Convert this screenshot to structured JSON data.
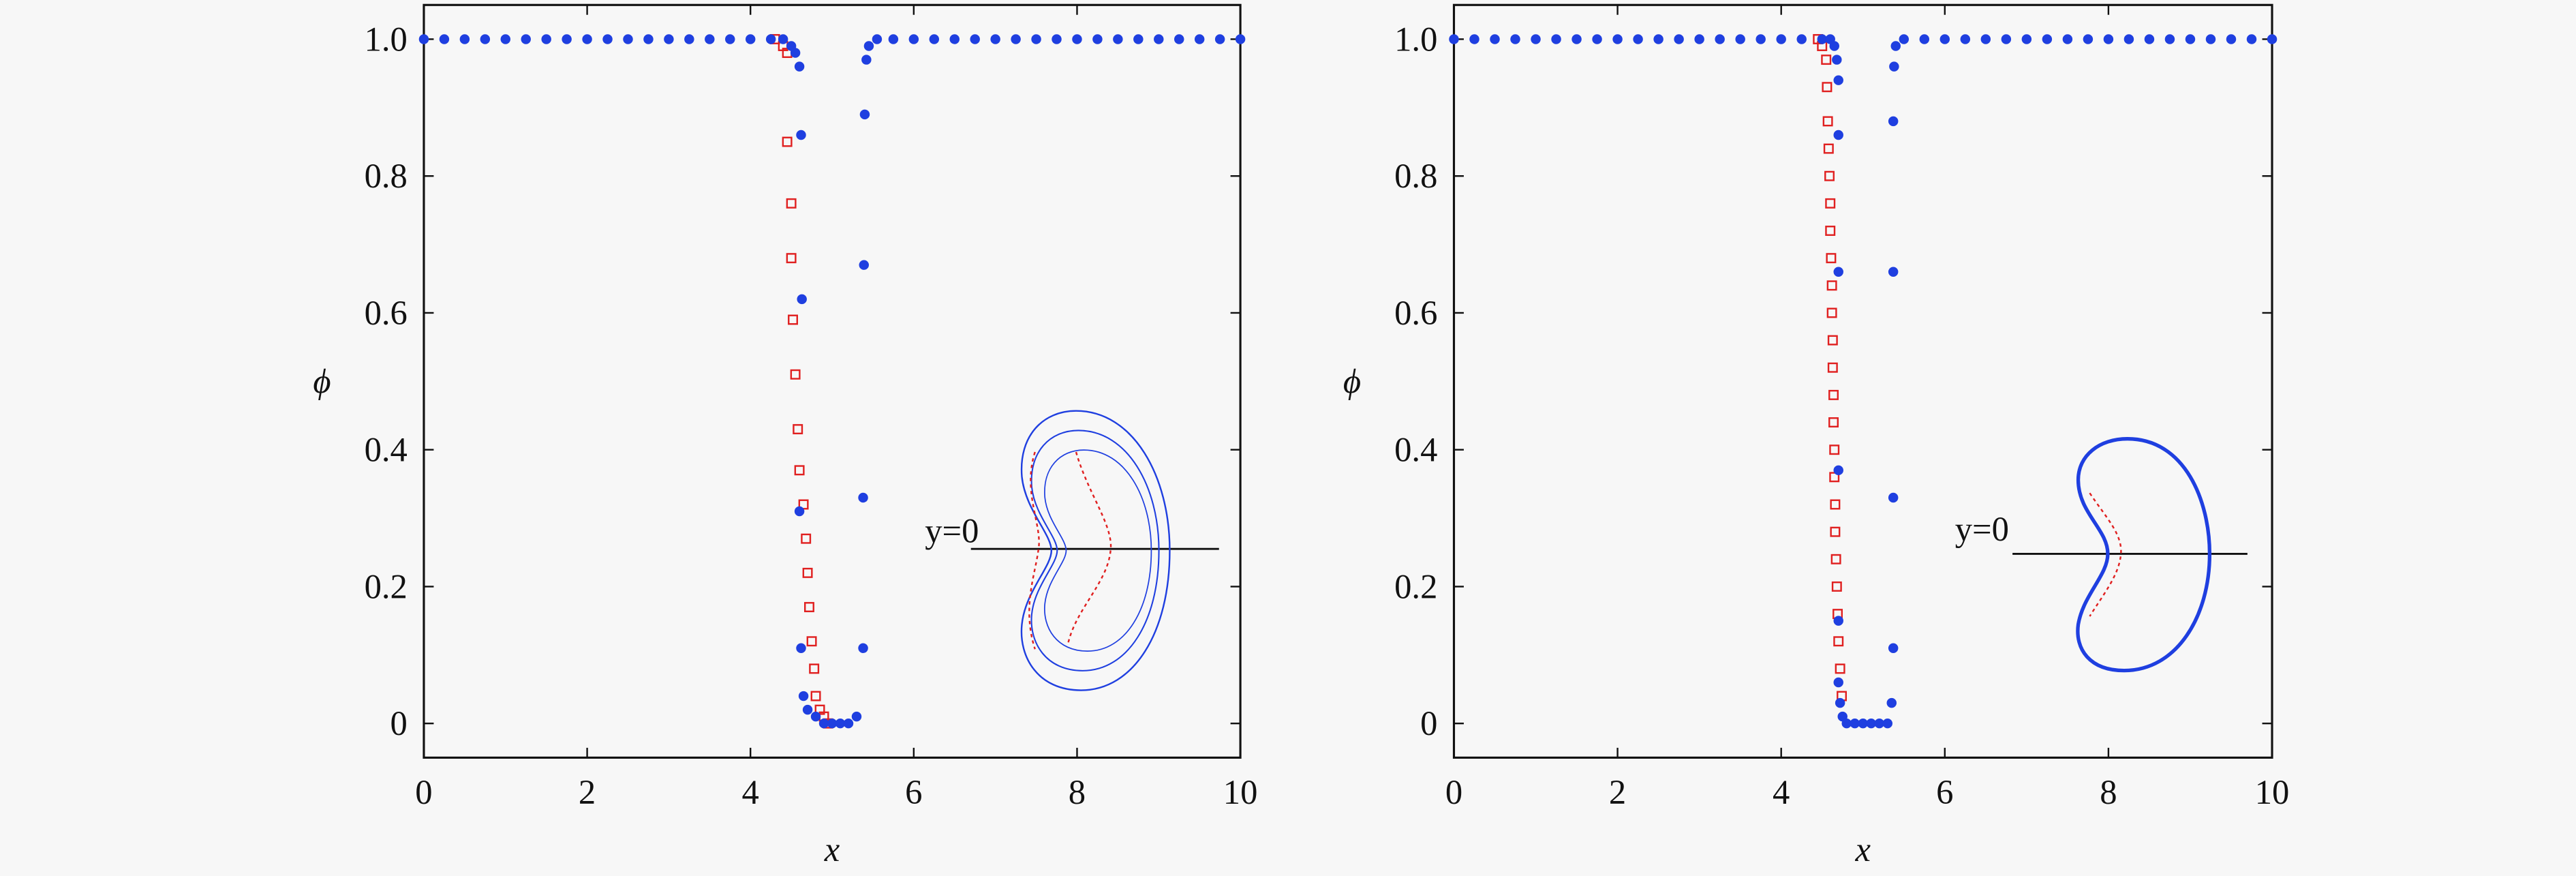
{
  "chart_data": [
    {
      "type": "scatter",
      "xlabel": "x",
      "ylabel": "ϕ",
      "annotation": "y=0",
      "xlim": [
        0,
        10
      ],
      "ylim": [
        -0.05,
        1.05
      ],
      "xticks": [
        0,
        2,
        4,
        6,
        8,
        10
      ],
      "yticks": [
        {
          "value": 0,
          "label": "0"
        },
        0.2,
        0.4,
        0.6,
        0.8,
        {
          "value": 1,
          "label": "1.0"
        }
      ],
      "series": [
        {
          "color": "#e02020",
          "marker": "square",
          "x": [
            4.3,
            4.4,
            4.45,
            4.45,
            4.5,
            4.5,
            4.52,
            4.55,
            4.58,
            4.6,
            4.65,
            4.68,
            4.7,
            4.72,
            4.75,
            4.78,
            4.8,
            4.85,
            4.9,
            4.95
          ],
          "values": [
            1.0,
            0.99,
            0.98,
            0.85,
            0.76,
            0.68,
            0.59,
            0.51,
            0.43,
            0.37,
            0.32,
            0.27,
            0.22,
            0.17,
            0.12,
            0.08,
            0.04,
            0.02,
            0.01,
            0
          ]
        },
        {
          "color": "#1f3fe0",
          "marker": "circle",
          "x": [
            0,
            0.25,
            0.5,
            0.75,
            1,
            1.25,
            1.5,
            1.75,
            2,
            2.25,
            2.5,
            2.75,
            3,
            3.25,
            3.5,
            3.75,
            4,
            4.25,
            4.4,
            4.5,
            4.55,
            4.6,
            4.62,
            4.63,
            4.6,
            4.62,
            4.65,
            4.7,
            4.8,
            4.9,
            5.0,
            5.1,
            5.2,
            5.3,
            5.38,
            5.38,
            5.39,
            5.4,
            5.42,
            5.45,
            5.55,
            5.75,
            6,
            6.25,
            6.5,
            6.75,
            7,
            7.25,
            7.5,
            7.75,
            8,
            8.25,
            8.5,
            8.75,
            9,
            9.25,
            9.5,
            9.75,
            10
          ],
          "values": [
            1,
            1,
            1,
            1,
            1,
            1,
            1,
            1,
            1,
            1,
            1,
            1,
            1,
            1,
            1,
            1,
            1,
            1,
            1,
            0.99,
            0.98,
            0.96,
            0.86,
            0.62,
            0.31,
            0.11,
            0.04,
            0.02,
            0.01,
            0,
            0,
            0,
            0,
            0.01,
            0.11,
            0.33,
            0.67,
            0.89,
            0.97,
            0.99,
            1,
            1,
            1,
            1,
            1,
            1,
            1,
            1,
            1,
            1,
            1,
            1,
            1,
            1,
            1,
            1,
            1,
            1,
            1
          ]
        }
      ]
    },
    {
      "type": "scatter",
      "xlabel": "x",
      "ylabel": "ϕ",
      "annotation": "y=0",
      "xlim": [
        0,
        10
      ],
      "ylim": [
        -0.05,
        1.05
      ],
      "xticks": [
        0,
        2,
        4,
        6,
        8,
        10
      ],
      "yticks": [
        {
          "value": 0,
          "label": "0"
        },
        0.2,
        0.4,
        0.6,
        0.8,
        {
          "value": 1,
          "label": "1.0"
        }
      ],
      "series": [
        {
          "color": "#e02020",
          "marker": "square",
          "x": [
            4.45,
            4.5,
            4.55,
            4.56,
            4.57,
            4.58,
            4.59,
            4.6,
            4.6,
            4.61,
            4.62,
            4.62,
            4.63,
            4.63,
            4.64,
            4.64,
            4.65,
            4.65,
            4.66,
            4.66,
            4.67,
            4.68,
            4.69,
            4.7,
            4.72,
            4.74
          ],
          "values": [
            1.0,
            0.99,
            0.97,
            0.93,
            0.88,
            0.84,
            0.8,
            0.76,
            0.72,
            0.68,
            0.64,
            0.6,
            0.56,
            0.52,
            0.48,
            0.44,
            0.4,
            0.36,
            0.32,
            0.28,
            0.24,
            0.2,
            0.16,
            0.12,
            0.08,
            0.04
          ]
        },
        {
          "color": "#1f3fe0",
          "marker": "circle",
          "x": [
            0,
            0.25,
            0.5,
            0.75,
            1,
            1.25,
            1.5,
            1.75,
            2,
            2.25,
            2.5,
            2.75,
            3,
            3.25,
            3.5,
            3.75,
            4,
            4.25,
            4.5,
            4.6,
            4.65,
            4.68,
            4.7,
            4.7,
            4.7,
            4.7,
            4.7,
            4.7,
            4.72,
            4.75,
            4.8,
            4.9,
            5.0,
            5.1,
            5.2,
            5.3,
            5.35,
            5.37,
            5.37,
            5.37,
            5.37,
            5.38,
            5.4,
            5.5,
            5.75,
            6,
            6.25,
            6.5,
            6.75,
            7,
            7.25,
            7.5,
            7.75,
            8,
            8.25,
            8.5,
            8.75,
            9,
            9.25,
            9.5,
            9.75,
            10
          ],
          "values": [
            1,
            1,
            1,
            1,
            1,
            1,
            1,
            1,
            1,
            1,
            1,
            1,
            1,
            1,
            1,
            1,
            1,
            1,
            1,
            1.0,
            0.99,
            0.97,
            0.94,
            0.86,
            0.66,
            0.37,
            0.15,
            0.06,
            0.03,
            0.01,
            0,
            0,
            0,
            0,
            0,
            0,
            0.03,
            0.11,
            0.33,
            0.66,
            0.88,
            0.96,
            0.99,
            1,
            1,
            1,
            1,
            1,
            1,
            1,
            1,
            1,
            1,
            1,
            1,
            1,
            1,
            1,
            1,
            1,
            1,
            1
          ]
        }
      ]
    }
  ]
}
